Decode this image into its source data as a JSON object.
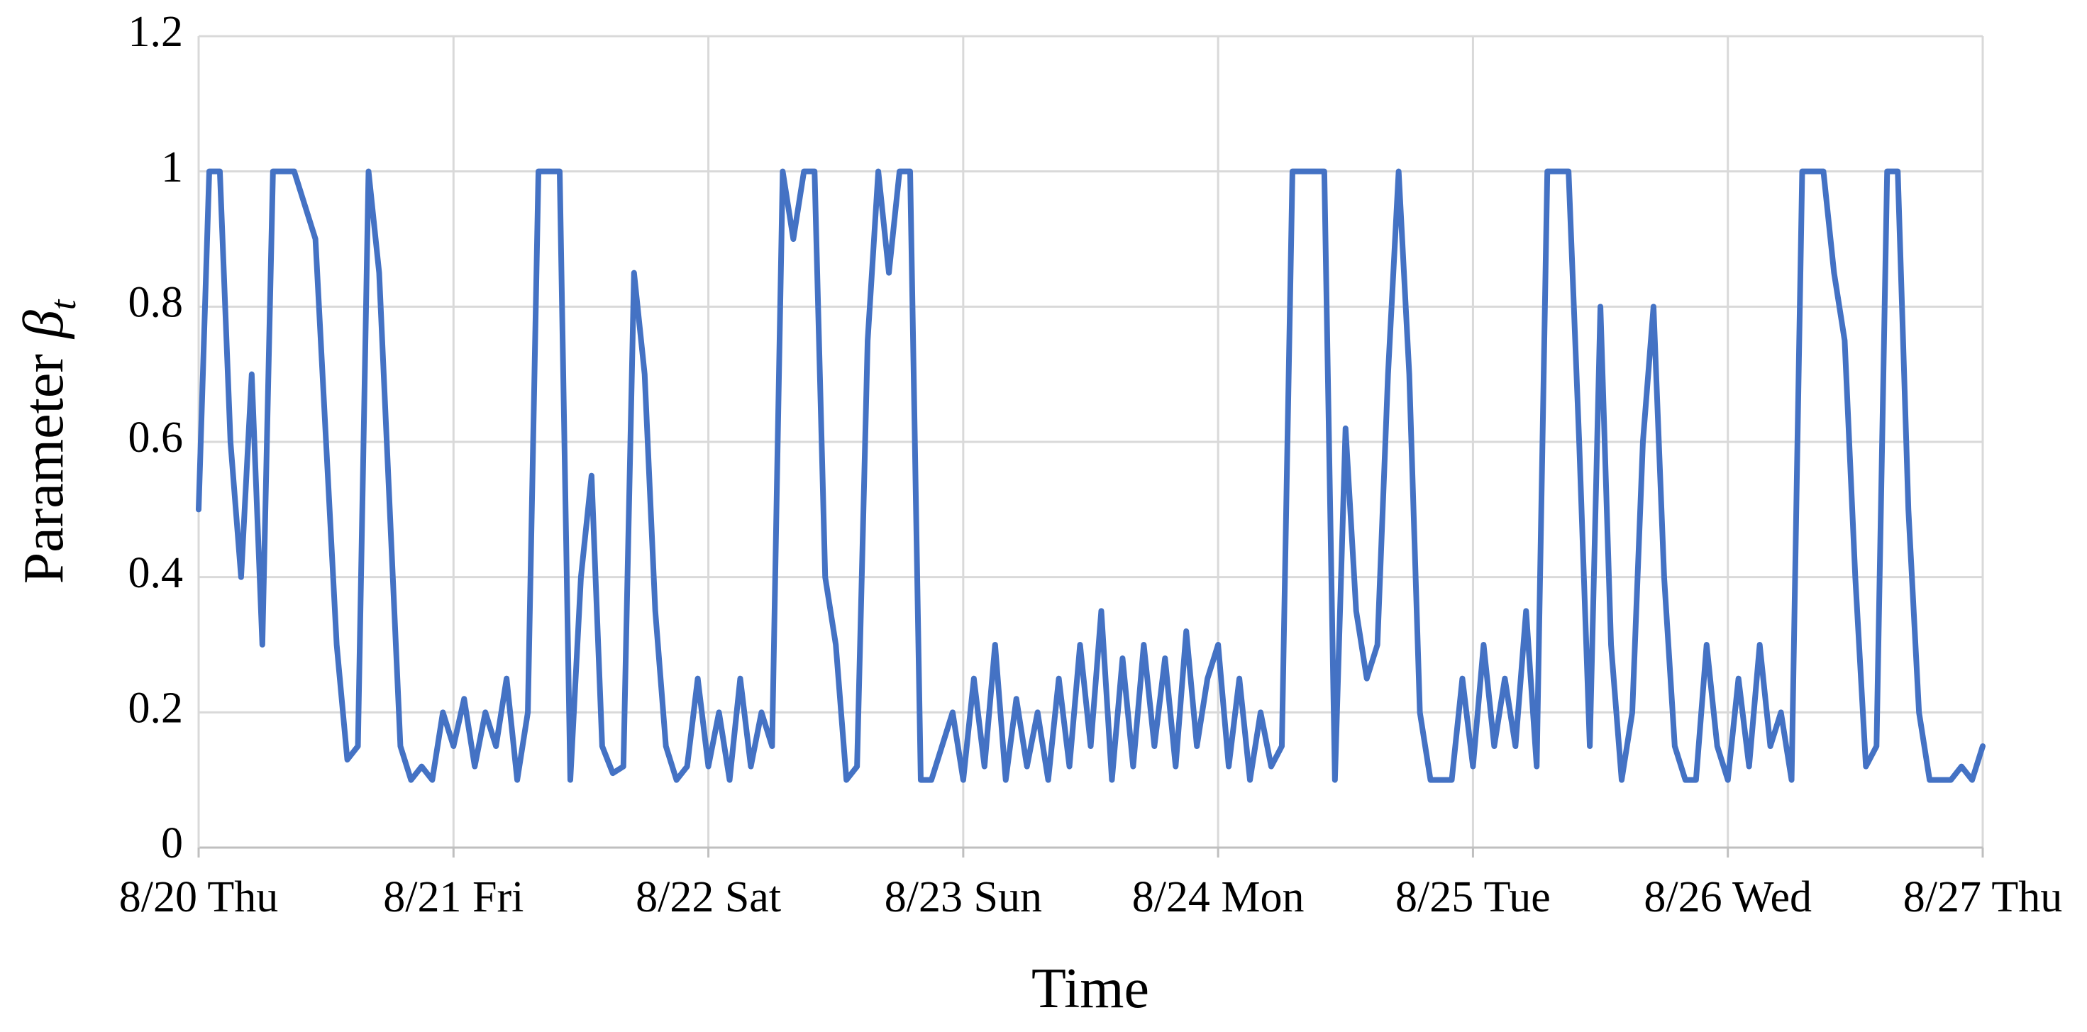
{
  "chart_data": {
    "type": "line",
    "y_label": [
      "Parameter",
      "β",
      "t"
    ],
    "x_label": "Time",
    "xlim": [
      0,
      168
    ],
    "xticks": [
      {
        "value": 0,
        "label": "8/20 Thu"
      },
      {
        "value": 24,
        "label": "8/21 Fri"
      },
      {
        "value": 48,
        "label": "8/22 Sat"
      },
      {
        "value": 72,
        "label": "8/23 Sun"
      },
      {
        "value": 96,
        "label": "8/24 Mon"
      },
      {
        "value": 120,
        "label": "8/25 Tue"
      },
      {
        "value": 144,
        "label": "8/26 Wed"
      },
      {
        "value": 168,
        "label": "8/27 Thu"
      }
    ],
    "ylim": [
      0,
      1.2
    ],
    "yticks": [
      0,
      0.2,
      0.4,
      0.6,
      0.8,
      1,
      1.2
    ],
    "grid": true,
    "color": "#4472c4",
    "values": [
      0.5,
      1,
      1,
      0.6,
      0.4,
      0.7,
      0.3,
      1,
      1,
      1,
      0.95,
      0.9,
      0.6,
      0.3,
      0.13,
      0.15,
      1,
      0.85,
      0.5,
      0.15,
      0.1,
      0.12,
      0.1,
      0.2,
      0.15,
      0.22,
      0.12,
      0.2,
      0.15,
      0.25,
      0.1,
      0.2,
      1,
      1,
      1,
      0.1,
      0.4,
      0.55,
      0.15,
      0.11,
      0.12,
      0.85,
      0.7,
      0.35,
      0.15,
      0.1,
      0.12,
      0.25,
      0.12,
      0.2,
      0.1,
      0.25,
      0.12,
      0.2,
      0.15,
      1,
      0.9,
      1,
      1,
      0.4,
      0.3,
      0.1,
      0.12,
      0.75,
      1,
      0.85,
      1,
      1,
      0.1,
      0.1,
      0.15,
      0.2,
      0.1,
      0.25,
      0.12,
      0.3,
      0.1,
      0.22,
      0.12,
      0.2,
      0.1,
      0.25,
      0.12,
      0.3,
      0.15,
      0.35,
      0.1,
      0.28,
      0.12,
      0.3,
      0.15,
      0.28,
      0.12,
      0.32,
      0.15,
      0.25,
      0.3,
      0.12,
      0.25,
      0.1,
      0.2,
      0.12,
      0.15,
      1,
      1,
      1,
      1,
      0.1,
      0.62,
      0.35,
      0.25,
      0.3,
      0.7,
      1,
      0.7,
      0.2,
      0.1,
      0.1,
      0.1,
      0.25,
      0.12,
      0.3,
      0.15,
      0.25,
      0.15,
      0.35,
      0.12,
      1,
      1,
      1,
      0.6,
      0.15,
      0.8,
      0.3,
      0.1,
      0.2,
      0.6,
      0.8,
      0.4,
      0.15,
      0.1,
      0.1,
      0.3,
      0.15,
      0.1,
      0.25,
      0.12,
      0.3,
      0.15,
      0.2,
      0.1,
      1,
      1,
      1,
      0.85,
      0.75,
      0.4,
      0.12,
      0.15,
      1,
      1,
      0.5,
      0.2,
      0.1,
      0.1,
      0.1,
      0.12,
      0.1,
      0.15
    ]
  }
}
